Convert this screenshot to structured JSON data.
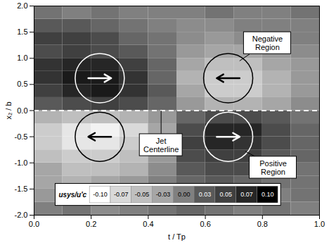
{
  "chart_data": {
    "type": "heatmap",
    "x_label": "t / Tp",
    "y_label": "x₂ / b",
    "xlim": [
      0,
      1
    ],
    "ylim": [
      -2,
      2
    ],
    "xticks": [
      {
        "value": 0,
        "label": "0.0"
      },
      0.2,
      0.4,
      0.6,
      0.8,
      {
        "value": 1,
        "label": "1.0"
      }
    ],
    "yticks": [
      {
        "value": -2,
        "label": "-2.0"
      },
      -1.5,
      {
        "value": -1,
        "label": "-1.0"
      },
      -0.5,
      {
        "value": 0,
        "label": "0.0"
      },
      0.5,
      {
        "value": 1,
        "label": "1.0"
      },
      1.5,
      {
        "value": 2,
        "label": "2.0"
      }
    ],
    "cells": {
      "t_edges": [
        0,
        0.1,
        0.2,
        0.3,
        0.4,
        0.5,
        0.6,
        0.7,
        0.8,
        0.9,
        1.0
      ],
      "x2_edges": [
        -2,
        -1.75,
        -1.5,
        -1.25,
        -1,
        -0.75,
        -0.5,
        -0.25,
        0,
        0.25,
        0.5,
        0.75,
        1,
        1.25,
        1.5,
        1.75,
        2
      ],
      "values": [
        [
          0.0,
          0.01,
          -0.01,
          0.0,
          0.01,
          0.02,
          0.01,
          0.0,
          0.01,
          0.0
        ],
        [
          -0.02,
          -0.02,
          -0.01,
          0.0,
          0.0,
          0.02,
          0.01,
          0.02,
          0.0,
          0.01
        ],
        [
          -0.03,
          -0.04,
          -0.03,
          -0.02,
          0.0,
          0.02,
          0.03,
          0.02,
          0.01,
          0.01
        ],
        [
          -0.03,
          -0.05,
          -0.05,
          -0.04,
          -0.01,
          0.03,
          0.04,
          0.04,
          0.02,
          0.01
        ],
        [
          -0.05,
          -0.06,
          -0.06,
          -0.05,
          -0.02,
          0.04,
          0.05,
          0.05,
          0.03,
          0.02
        ],
        [
          -0.06,
          -0.08,
          -0.08,
          -0.06,
          -0.02,
          0.05,
          0.07,
          0.06,
          0.04,
          0.02
        ],
        [
          -0.06,
          -0.08,
          -0.09,
          -0.07,
          -0.03,
          0.04,
          0.07,
          0.07,
          0.04,
          0.02
        ],
        [
          -0.04,
          -0.05,
          -0.05,
          -0.04,
          -0.02,
          0.02,
          0.04,
          0.04,
          0.03,
          0.01
        ],
        [
          0.03,
          0.04,
          0.05,
          0.04,
          0.02,
          -0.02,
          -0.04,
          -0.04,
          -0.03,
          -0.01
        ],
        [
          0.05,
          0.07,
          0.08,
          0.06,
          0.03,
          -0.03,
          -0.06,
          -0.06,
          -0.04,
          -0.02
        ],
        [
          0.06,
          0.08,
          0.08,
          0.06,
          0.02,
          -0.04,
          -0.06,
          -0.06,
          -0.04,
          -0.02
        ],
        [
          0.06,
          0.07,
          0.07,
          0.05,
          0.02,
          -0.03,
          -0.05,
          -0.05,
          -0.03,
          -0.02
        ],
        [
          0.04,
          0.05,
          0.04,
          0.03,
          0.01,
          -0.02,
          -0.03,
          -0.03,
          -0.02,
          -0.01
        ],
        [
          0.05,
          0.05,
          0.04,
          0.02,
          0.01,
          -0.01,
          -0.02,
          -0.01,
          -0.01,
          0.0
        ],
        [
          0.03,
          0.03,
          0.02,
          0.01,
          0.0,
          -0.01,
          -0.01,
          0.0,
          0.0,
          0.0
        ],
        [
          0.01,
          0.0,
          0.01,
          0.0,
          0.0,
          0.0,
          0.01,
          0.0,
          0.0,
          0.01
        ]
      ]
    },
    "colorbar": {
      "label": "usys/u'c",
      "range": [
        -0.1,
        0.1
      ],
      "ticks": [
        {
          "value": -0.1,
          "label": "-0.10"
        },
        -0.07,
        -0.05,
        -0.03,
        {
          "value": 0,
          "label": "0.00"
        },
        0.03,
        0.05,
        0.07,
        {
          "value": 0.1,
          "label": "0.10"
        }
      ]
    },
    "annotations": [
      "Negative Region",
      "Positive Region",
      "Jet Centerline"
    ]
  }
}
